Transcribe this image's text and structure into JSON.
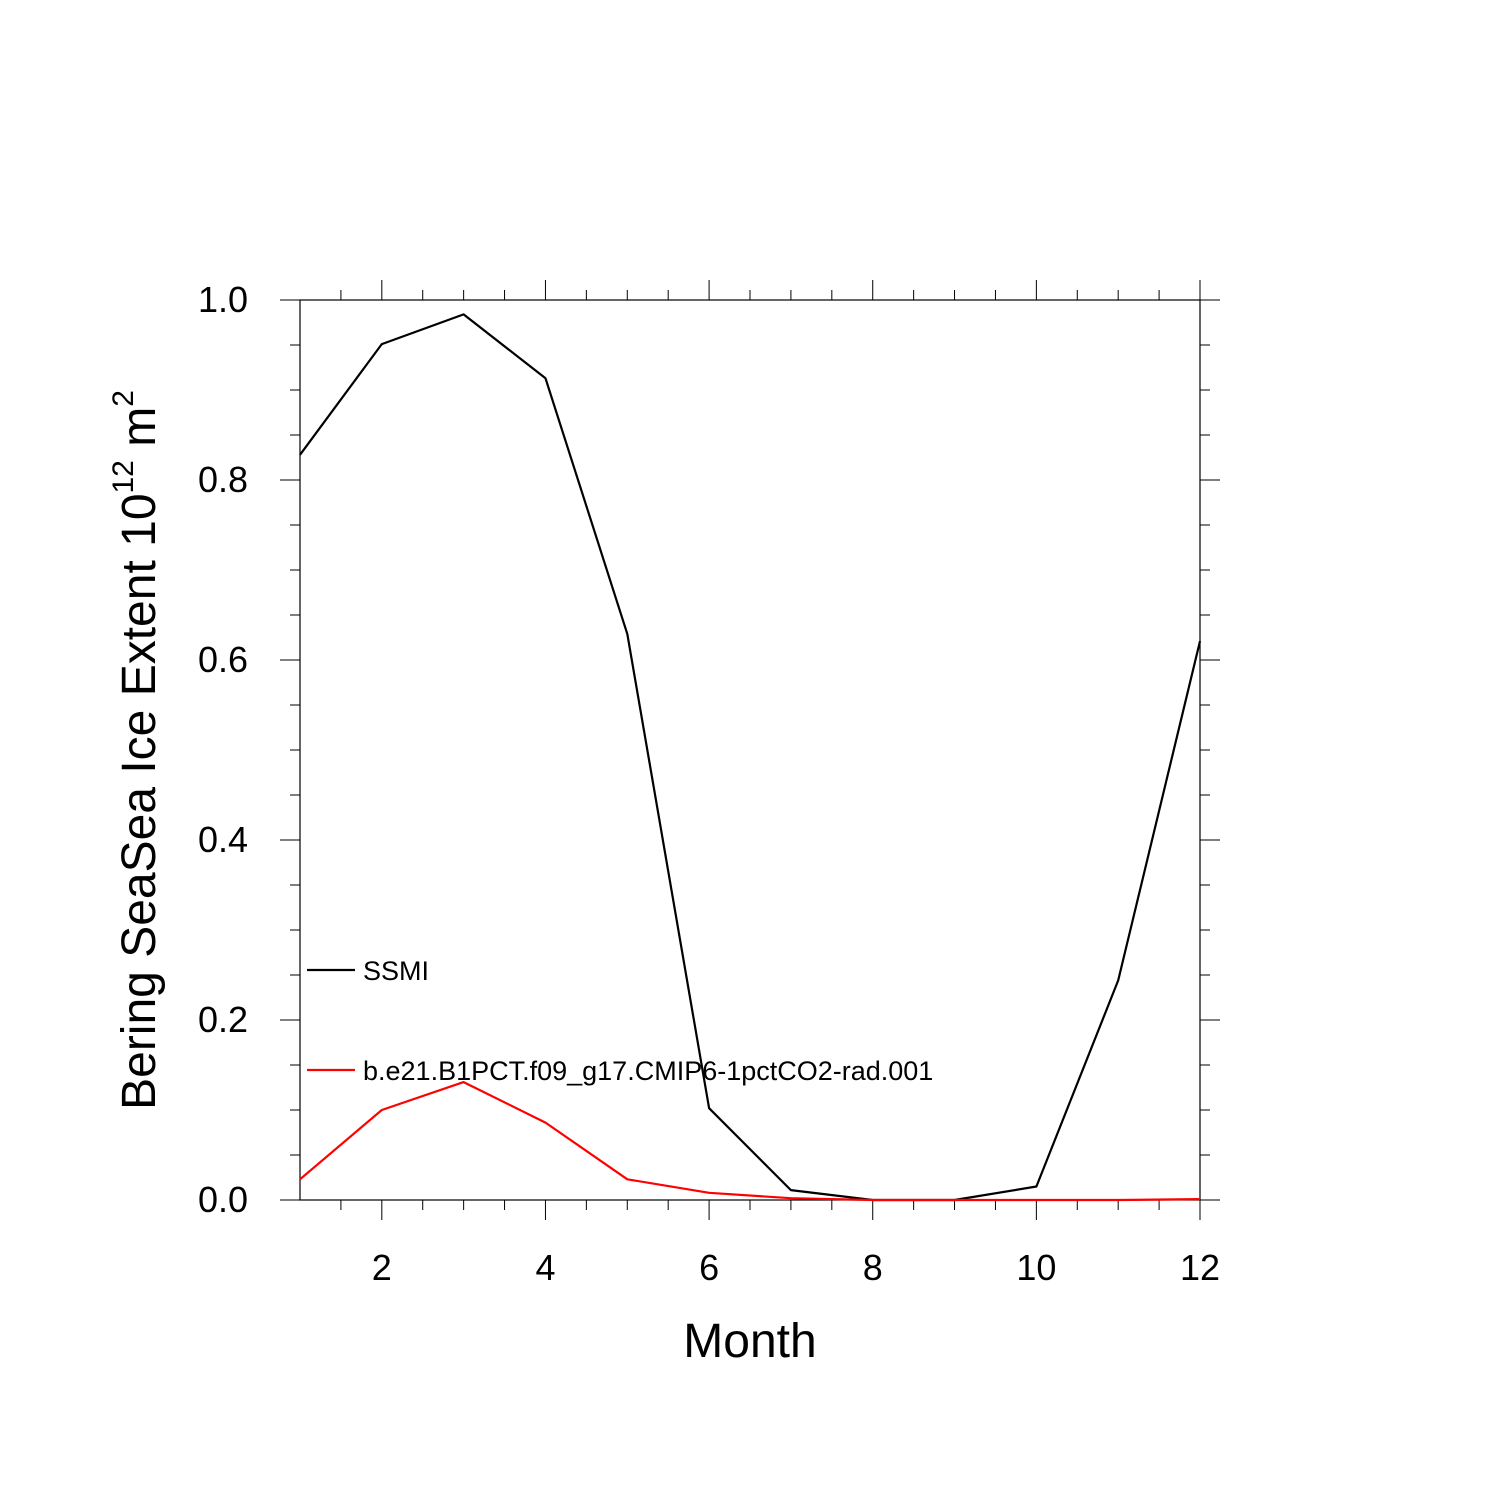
{
  "chart_data": {
    "type": "line",
    "xlabel": "Month",
    "ylabel": {
      "text": "Bering SeaSea Ice Extent 10",
      "superscript": "12",
      "unit": " m",
      "unit_superscript": "2"
    },
    "xlim": [
      1,
      12
    ],
    "ylim": [
      0,
      1
    ],
    "x_ticks": [
      2,
      4,
      6,
      8,
      10,
      12
    ],
    "x_tick_labels": [
      "2",
      "4",
      "6",
      "8",
      "10",
      "12"
    ],
    "y_ticks": [
      0,
      0.2,
      0.4,
      0.6,
      0.8,
      1.0
    ],
    "y_tick_labels": [
      "0.0",
      "0.2",
      "0.4",
      "0.6",
      "0.8",
      "1.0"
    ],
    "grid": false,
    "legend_position": "lower-left",
    "x": [
      1,
      2,
      3,
      4,
      5,
      6,
      7,
      8,
      9,
      10,
      11,
      12
    ],
    "series": [
      {
        "name": "SSMI",
        "color": "#000000",
        "values": [
          0.828,
          0.951,
          0.984,
          0.913,
          0.629,
          0.102,
          0.011,
          0.0,
          0.0,
          0.015,
          0.244,
          0.621
        ]
      },
      {
        "name": "b.e21.B1PCT.f09_g17.CMIP6-1pctCO2-rad.001",
        "color": "#ff0000",
        "values": [
          0.023,
          0.1,
          0.131,
          0.086,
          0.023,
          0.008,
          0.002,
          0.0,
          0.0,
          0.0,
          0.0,
          0.001
        ]
      }
    ]
  }
}
